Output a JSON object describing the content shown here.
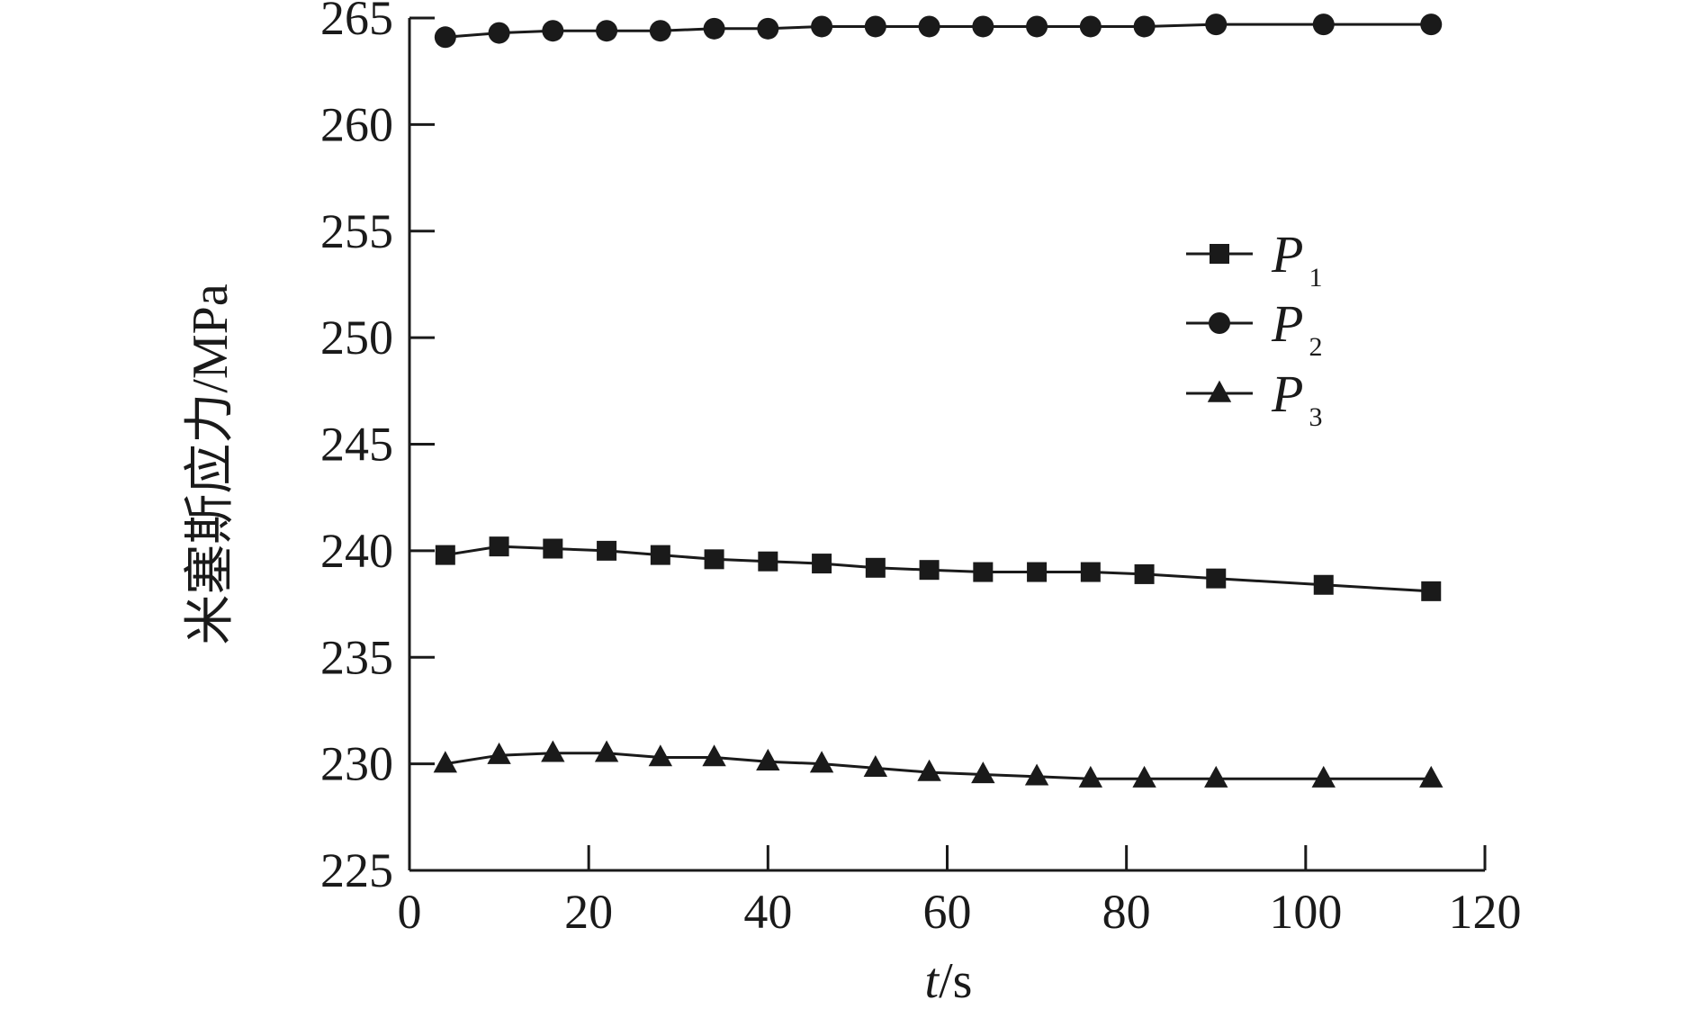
{
  "chart_data": {
    "type": "line",
    "xlabel_italic": "t",
    "xlabel_rest": "/s",
    "ylabel": "米塞斯应力/MPa",
    "xlim": [
      0,
      120
    ],
    "ylim": [
      225,
      265
    ],
    "xticks": [
      0,
      20,
      40,
      60,
      80,
      100,
      120
    ],
    "yticks": [
      225,
      230,
      235,
      240,
      245,
      250,
      255,
      260,
      265
    ],
    "grid": false,
    "legend_position": "upper-right",
    "x": [
      4,
      10,
      16,
      22,
      28,
      34,
      40,
      46,
      52,
      58,
      64,
      70,
      76,
      82,
      90,
      102,
      114
    ],
    "series": [
      {
        "name": "P1",
        "name_main": "P",
        "name_sub": "1",
        "marker": "square",
        "color": "#1a1a1a",
        "values": [
          239.8,
          240.2,
          240.1,
          240.0,
          239.8,
          239.6,
          239.5,
          239.4,
          239.2,
          239.1,
          239.0,
          239.0,
          239.0,
          238.9,
          238.7,
          238.4,
          238.1
        ]
      },
      {
        "name": "P2",
        "name_main": "P",
        "name_sub": "2",
        "marker": "circle",
        "color": "#1a1a1a",
        "values": [
          264.1,
          264.3,
          264.4,
          264.4,
          264.4,
          264.5,
          264.5,
          264.6,
          264.6,
          264.6,
          264.6,
          264.6,
          264.6,
          264.6,
          264.7,
          264.7,
          264.7
        ]
      },
      {
        "name": "P3",
        "name_main": "P",
        "name_sub": "3",
        "marker": "triangle",
        "color": "#1a1a1a",
        "values": [
          230.0,
          230.4,
          230.5,
          230.5,
          230.3,
          230.3,
          230.1,
          230.0,
          229.8,
          229.6,
          229.5,
          229.4,
          229.3,
          229.3,
          229.3,
          229.3,
          229.3
        ]
      }
    ]
  }
}
